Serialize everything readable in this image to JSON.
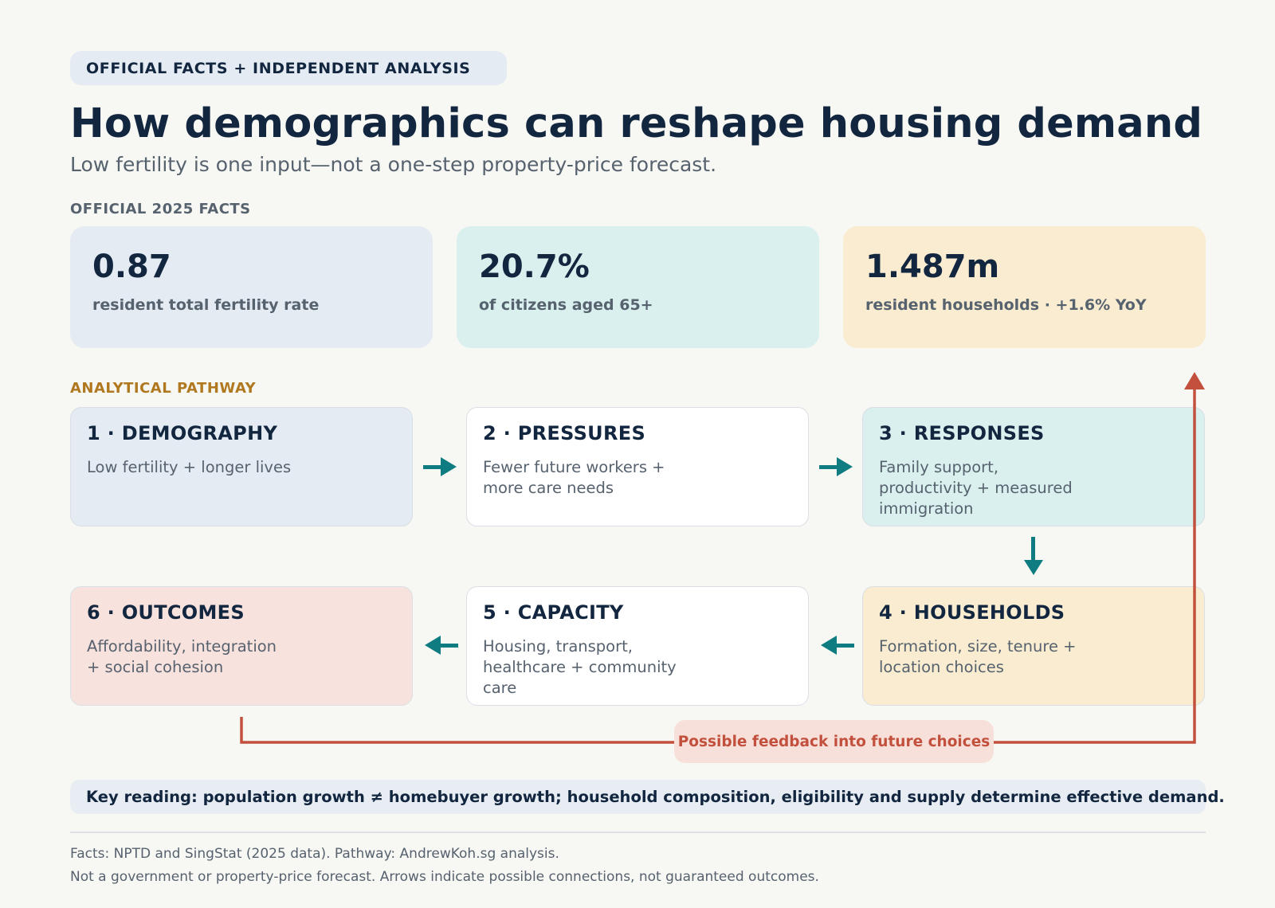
{
  "badge": "OFFICIAL FACTS + INDEPENDENT ANALYSIS",
  "title": "How demographics can reshape housing demand",
  "subtitle": "Low fertility is one input—not a one-step property-price forecast.",
  "facts_label": "OFFICIAL 2025 FACTS",
  "facts": [
    {
      "value": "0.87",
      "desc": "resident total fertility rate",
      "color": "#e4ebf3"
    },
    {
      "value": "20.7%",
      "desc": "of citizens aged 65+",
      "color": "#d9f0ef"
    },
    {
      "value": "1.487m",
      "desc": "resident households · +1.6% YoY",
      "color": "#f9ecd0"
    }
  ],
  "pathway_label": "ANALYTICAL PATHWAY",
  "steps": [
    {
      "heading": "1 · DEMOGRAPHY",
      "body": "Low fertility + longer lives",
      "color": "#e4ebf3"
    },
    {
      "heading": "2 · PRESSURES",
      "body": "Fewer future workers + more care needs",
      "color": "#ffffff"
    },
    {
      "heading": "3 · RESPONSES",
      "body": "Family support, productivity + measured immigration",
      "color": "#d9f0ef"
    },
    {
      "heading": "4 · HOUSEHOLDS",
      "body": "Formation, size, tenure + location choices",
      "color": "#f9ecd0"
    },
    {
      "heading": "5 · CAPACITY",
      "body": "Housing, transport, healthcare + community care",
      "color": "#ffffff"
    },
    {
      "heading": "6 · OUTCOMES",
      "body": "Affordability, integration + social cohesion",
      "color": "#f8e2dd"
    }
  ],
  "feedback_label": "Possible feedback into future choices",
  "key_reading": "Key reading: population growth ≠ homebuyer growth; household composition, eligibility and supply determine effective demand.",
  "footnotes": [
    "Facts: NPTD and SingStat (2025 data). Pathway: AndrewKoh.sg analysis.",
    "Not a government or property-price forecast. Arrows indicate possible connections, not guaranteed outcomes."
  ],
  "colors": {
    "flow_arrow": "#0e7c80",
    "feedback_arrow": "#c2503d",
    "title_text": "#12263f",
    "muted_text": "#57626f",
    "pathway_accent": "#b0781f"
  }
}
